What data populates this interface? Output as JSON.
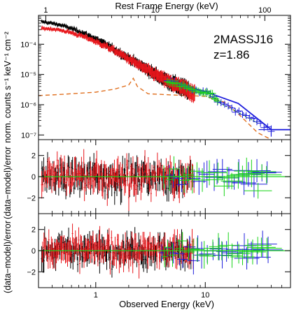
{
  "chart_data": [
    {
      "type": "scatter",
      "subtype": "x-ray spectrum with model",
      "panel": "spectrum",
      "annotation": {
        "line1": "2MASSJ16",
        "line2": "z=1.86"
      },
      "top_axis": {
        "label": "Rest Frame Energy (keV)",
        "ticks": [
          "1",
          "10",
          "100"
        ],
        "values": [
          1,
          10,
          100
        ],
        "scale": "log"
      },
      "ylabel": "norm. counts s⁻¹ keV⁻¹ cm⁻²",
      "yscale": "log",
      "xscale": "log",
      "xlim": [
        0.3,
        60
      ],
      "ylim": [
        7e-08,
        0.0009
      ],
      "yticks": [
        "10⁻⁴",
        "10⁻⁵",
        "10⁻⁶",
        "10⁻⁷"
      ],
      "ytick_values": [
        0.0001,
        1e-05,
        1e-06,
        1e-07
      ],
      "series": [
        {
          "color": "#000000",
          "x": [
            0.32,
            0.35,
            0.4,
            0.45,
            0.5,
            0.6,
            0.7,
            0.8,
            0.9,
            1.0,
            1.2,
            1.4,
            1.6,
            1.8,
            2.0,
            2.3,
            2.6,
            3.0,
            3.5,
            4.0,
            4.5,
            5.0,
            6.0,
            7.0
          ],
          "y": [
            0.00055,
            0.00053,
            0.00049,
            0.00045,
            0.00041,
            0.00033,
            0.00027,
            0.00022,
            0.00018,
            0.00015,
            0.000105,
            7.5e-05,
            5.6e-05,
            4.3e-05,
            3.4e-05,
            2.5e-05,
            1.9e-05,
            1.4e-05,
            1e-05,
            7.8e-06,
            6.2e-06,
            5.2e-06,
            3.8e-06,
            3e-06
          ]
        },
        {
          "color": "#e8161b",
          "x": [
            0.32,
            0.35,
            0.4,
            0.45,
            0.5,
            0.6,
            0.7,
            0.8,
            0.9,
            1.0,
            1.2,
            1.4,
            1.6,
            1.8,
            2.0,
            2.3,
            2.6,
            3.0,
            3.5,
            4.0,
            4.5,
            5.0,
            6.0,
            7.0,
            8.0
          ],
          "y": [
            0.00033,
            0.00033,
            0.00032,
            0.0003,
            0.00028,
            0.00024,
            0.0002,
            0.00017,
            0.000145,
            0.00012,
            9e-05,
            6.8e-05,
            5.2e-05,
            4.1e-05,
            3.2e-05,
            2.4e-05,
            1.8e-05,
            1.35e-05,
            1e-05,
            7.6e-06,
            6.1e-06,
            5e-06,
            3.7e-06,
            3e-06,
            2.4e-06
          ]
        },
        {
          "color": "#1f1fdc",
          "x": [
            4.5,
            5.0,
            5.5,
            6.0,
            7.0,
            8.0,
            9.0,
            10.0,
            11.0,
            13.0,
            20.0,
            40.0
          ],
          "y": [
            6.5e-06,
            5.6e-06,
            5e-06,
            4.4e-06,
            3.6e-06,
            3.1e-06,
            2.9e-06,
            2.8e-06,
            2.6e-06,
            1.2e-06,
            6e-07,
            1.5e-07
          ]
        },
        {
          "color": "#17d417",
          "x": [
            4.5,
            5.0,
            5.5,
            6.0,
            7.0,
            8.0,
            9.0,
            10.0,
            11.0,
            13.0
          ],
          "y": [
            6.3e-06,
            5.4e-06,
            4.8e-06,
            4.3e-06,
            3.5e-06,
            3e-06,
            2.8e-06,
            2.7e-06,
            2.4e-06,
            1.4e-06
          ]
        }
      ],
      "model_lines": [
        {
          "color": "#1f1fdc",
          "style": "solid",
          "x": [
            4.5,
            10,
            20,
            40,
            60
          ],
          "y": [
            6.3e-06,
            2.7e-06,
            1.1e-06,
            1.5e-07,
            1.5e-07
          ]
        },
        {
          "color": "#e07020",
          "style": "dashed",
          "x": [
            0.3,
            0.5,
            1.0,
            1.5,
            2.0,
            2.2,
            2.4,
            3.0,
            5.0,
            10.0,
            15.0,
            20.0,
            30.0,
            40.0
          ],
          "y": [
            2e-06,
            2.2e-06,
            2.6e-06,
            3.3e-06,
            4.5e-06,
            7.5e-06,
            4e-06,
            2.3e-06,
            2.1e-06,
            1.9e-06,
            1.2e-06,
            5e-07,
            1.2e-07,
            7e-08
          ]
        },
        {
          "color": "#1f1fdc",
          "style": "dotted",
          "x": [
            3.0,
            10.0,
            20.0,
            30.0
          ],
          "y": [
            1.4e-05,
            2.3e-06,
            6.5e-07,
            3e-07
          ]
        },
        {
          "color": "#17a017",
          "style": "dotted",
          "x": [
            3.0,
            10.0,
            20.0,
            30.0
          ],
          "y": [
            1.3e-05,
            2e-06,
            5.5e-07,
            2.5e-07
          ]
        }
      ]
    },
    {
      "type": "scatter",
      "subtype": "residuals",
      "panel": "residuals-1",
      "ylabel": "(data−model)/error",
      "xscale": "log",
      "xlim": [
        0.3,
        60
      ],
      "ylim": [
        -3.5,
        3.5
      ],
      "yticks": [
        "2",
        "0",
        "−2"
      ],
      "ytick_values": [
        2,
        0,
        -2
      ],
      "zero_line_color": "#17d417",
      "series": [
        {
          "color": "#000000",
          "x_range": [
            0.32,
            7.5
          ],
          "amplitude": 1.6
        },
        {
          "color": "#e8161b",
          "x_range": [
            0.32,
            8.0
          ],
          "amplitude": 1.8
        },
        {
          "color": "#1f1fdc",
          "x_range": [
            4.0,
            40.0
          ],
          "amplitude": 1.1
        },
        {
          "color": "#17d417",
          "x_range": [
            4.0,
            40.0
          ],
          "amplitude": 1.1
        }
      ]
    },
    {
      "type": "scatter",
      "subtype": "residuals",
      "panel": "residuals-2",
      "ylabel": "(data−model)/error",
      "xlabel": "Observed Energy (keV)",
      "xscale": "log",
      "xlim": [
        0.3,
        60
      ],
      "ylim": [
        -3.5,
        3.5
      ],
      "yticks": [
        "2",
        "0",
        "−2"
      ],
      "ytick_values": [
        2,
        0,
        -2
      ],
      "xticks": [
        "1",
        "10"
      ],
      "xtick_values": [
        1,
        10
      ],
      "zero_line_color": "#17d417",
      "series": [
        {
          "color": "#000000",
          "x_range": [
            0.32,
            7.5
          ],
          "amplitude": 1.4
        },
        {
          "color": "#e8161b",
          "x_range": [
            0.32,
            8.0
          ],
          "amplitude": 1.5
        },
        {
          "color": "#1f1fdc",
          "x_range": [
            4.0,
            40.0
          ],
          "amplitude": 1.0
        },
        {
          "color": "#17d417",
          "x_range": [
            4.0,
            40.0
          ],
          "amplitude": 1.0
        }
      ]
    }
  ]
}
